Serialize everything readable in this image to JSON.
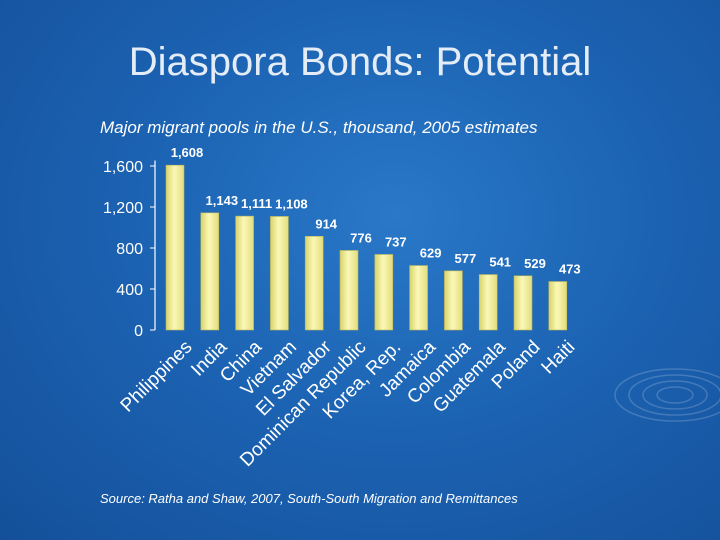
{
  "slide": {
    "title": "Diaspora Bonds: Potential",
    "subtitle": "Major migrant pools in the U.S., thousand, 2005 estimates",
    "source": "Source: Ratha and Shaw, 2007, South-South Migration and Remittances"
  },
  "colors": {
    "background": "#1c63b3",
    "bar_fill": "#f3ef9a",
    "text": "#ffffff"
  },
  "chart_data": {
    "type": "bar",
    "categories": [
      "Philippines",
      "India",
      "China",
      "Vietnam",
      "El Salvador",
      "Dominican Republic",
      "Korea, Rep.",
      "Jamaica",
      "Colombia",
      "Guatemala",
      "Poland",
      "Haiti"
    ],
    "values": [
      1608,
      1143,
      1111,
      1108,
      914,
      776,
      737,
      629,
      577,
      541,
      529,
      473
    ],
    "data_labels": [
      "1,608",
      "1,143",
      "1,111",
      "1,108",
      "914",
      "776",
      "737",
      "629",
      "577",
      "541",
      "529",
      "473"
    ],
    "y_ticks": [
      0,
      400,
      800,
      1200,
      1600
    ],
    "y_tick_labels": [
      "0",
      "400",
      "800",
      "1,200",
      "1,600"
    ],
    "ylim": [
      0,
      1800
    ],
    "grid": false,
    "legend": "none"
  }
}
